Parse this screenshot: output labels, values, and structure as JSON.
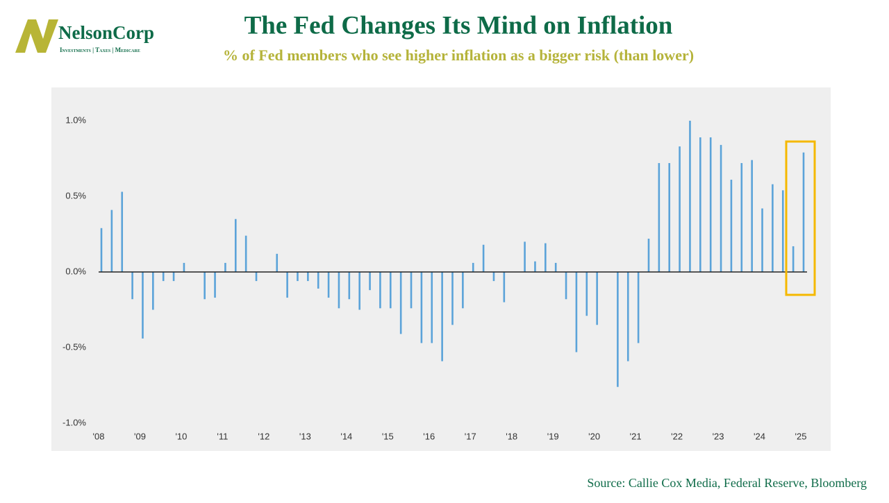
{
  "logo": {
    "name": "NelsonCorp",
    "tagline": "Investments | Taxes | Medicare"
  },
  "chart_data": {
    "type": "bar",
    "title": "The Fed Changes Its Mind on Inflation",
    "subtitle": "% of Fed members who see higher inflation as a bigger risk (than lower)",
    "source": "Source: Callie Cox Media, Federal Reserve, Bloomberg",
    "categories": [
      "'08",
      null,
      null,
      null,
      "'09",
      null,
      null,
      null,
      "'10",
      null,
      null,
      null,
      "'11",
      null,
      null,
      null,
      "'12",
      null,
      null,
      null,
      "'13",
      null,
      null,
      null,
      "'14",
      null,
      null,
      null,
      "'15",
      null,
      null,
      null,
      "'16",
      null,
      null,
      null,
      "'17",
      null,
      null,
      null,
      "'18",
      null,
      null,
      null,
      "'19",
      null,
      null,
      null,
      "'20",
      null,
      null,
      null,
      "'21",
      null,
      null,
      null,
      "'22",
      null,
      null,
      null,
      "'23",
      null,
      null,
      null,
      "'24",
      null,
      null,
      null,
      "'25"
    ],
    "values": [
      0.29,
      0.41,
      0.53,
      -0.18,
      -0.44,
      -0.25,
      -0.06,
      -0.06,
      0.06,
      null,
      -0.18,
      -0.17,
      0.06,
      0.35,
      0.24,
      -0.06,
      null,
      0.12,
      -0.17,
      -0.06,
      -0.06,
      -0.11,
      -0.17,
      -0.24,
      -0.18,
      -0.25,
      -0.12,
      -0.24,
      -0.24,
      -0.41,
      -0.24,
      -0.47,
      -0.47,
      -0.59,
      -0.35,
      -0.24,
      0.06,
      0.18,
      -0.06,
      -0.2,
      null,
      0.2,
      0.07,
      0.19,
      0.06,
      -0.18,
      -0.53,
      -0.29,
      -0.35,
      null,
      -0.76,
      -0.59,
      -0.47,
      0.22,
      0.72,
      0.72,
      0.83,
      1.0,
      0.89,
      0.89,
      0.84,
      0.61,
      0.72,
      0.74,
      0.42,
      0.58,
      0.54,
      0.17,
      0.79
    ],
    "color": "#5ba3d9",
    "ylim": [
      -1.0,
      1.0
    ],
    "yticks": [
      {
        "value": -1.0,
        "label": "-1.0%"
      },
      {
        "value": -0.5,
        "label": "-0.5%"
      },
      {
        "value": 0.0,
        "label": "0.0%"
      },
      {
        "value": 0.5,
        "label": "0.5%"
      },
      {
        "value": 1.0,
        "label": "1.0%"
      }
    ],
    "grid": false
  }
}
